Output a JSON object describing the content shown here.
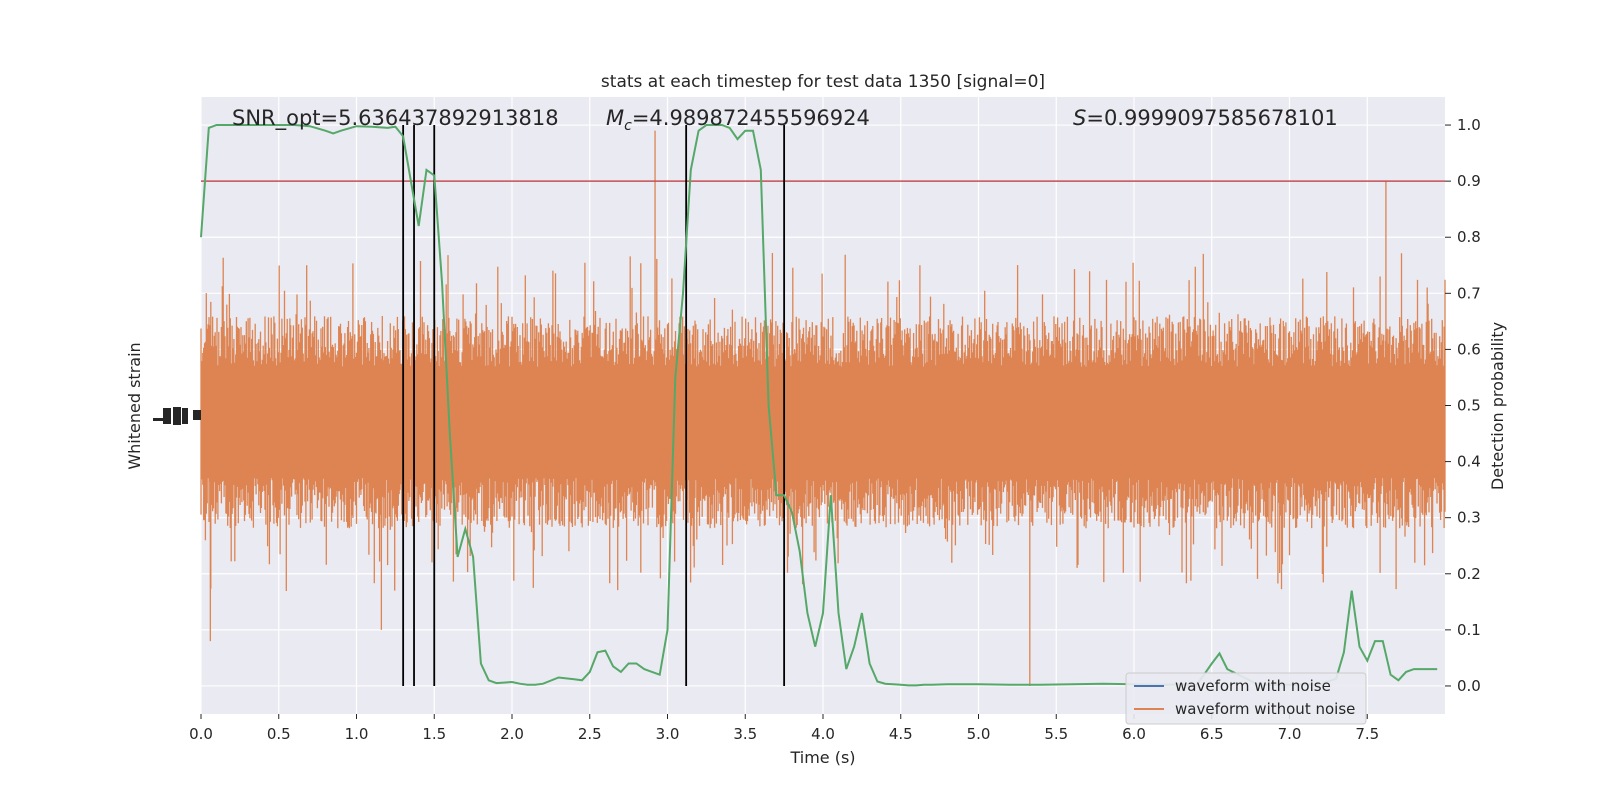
{
  "chart_data": {
    "type": "line",
    "title": "stats at each timestep for test data 1350 [signal=0]",
    "xlabel": "Time (s)",
    "ylabel_left": "Whitened strain",
    "ylabel_right": "Detection probability",
    "xlim": [
      0.0,
      8.0
    ],
    "ylim_right": [
      -0.05,
      1.05
    ],
    "x_ticks": [
      "0.0",
      "0.5",
      "1.0",
      "1.5",
      "2.0",
      "2.5",
      "3.0",
      "3.5",
      "4.0",
      "4.5",
      "5.0",
      "5.5",
      "6.0",
      "6.5",
      "7.0",
      "7.5"
    ],
    "y_ticks_right": [
      "0.0",
      "0.1",
      "0.2",
      "0.3",
      "0.4",
      "0.5",
      "0.6",
      "0.7",
      "0.8",
      "0.9",
      "1.0"
    ],
    "annotations": {
      "snr": "SNR_opt=5.636437892913818",
      "mc_symbol": "M",
      "mc_sub": "c",
      "mc_value": "=4.989872455596924",
      "s_symbol": "S",
      "s_value": "=0.9999097585678101"
    },
    "threshold": 0.9,
    "vertical_lines": [
      1.3,
      1.37,
      1.5,
      3.12,
      3.75
    ],
    "legend": {
      "position": "lower right",
      "entries": [
        {
          "label": "waveform with noise",
          "color": "#4c72b0"
        },
        {
          "label": "waveform without noise",
          "color": "#dd8452"
        }
      ]
    },
    "series": [
      {
        "name": "waveform with noise",
        "color": "#4c72b0",
        "note_values": "hidden beneath noise-free waveform"
      },
      {
        "name": "waveform without noise",
        "color": "#dd8452",
        "band_center": 0.47,
        "band_amplitude": 0.18
      },
      {
        "color": "#55a868",
        "x": [
          0.0,
          0.05,
          0.1,
          0.2,
          0.3,
          0.4,
          0.5,
          0.6,
          0.7,
          0.8,
          0.85,
          0.9,
          1.0,
          1.1,
          1.2,
          1.25,
          1.3,
          1.35,
          1.4,
          1.45,
          1.5,
          1.55,
          1.6,
          1.65,
          1.7,
          1.75,
          1.8,
          1.85,
          1.9,
          2.0,
          2.05,
          2.1,
          2.15,
          2.2,
          2.3,
          2.4,
          2.45,
          2.5,
          2.55,
          2.6,
          2.65,
          2.7,
          2.75,
          2.8,
          2.85,
          2.9,
          2.95,
          3.0,
          3.05,
          3.1,
          3.15,
          3.2,
          3.25,
          3.3,
          3.35,
          3.4,
          3.45,
          3.5,
          3.55,
          3.6,
          3.65,
          3.7,
          3.75,
          3.8,
          3.85,
          3.9,
          3.95,
          4.0,
          4.05,
          4.1,
          4.15,
          4.2,
          4.25,
          4.3,
          4.35,
          4.4,
          4.45,
          4.5,
          4.55,
          4.6,
          4.65,
          4.7,
          4.8,
          5.0,
          5.2,
          5.4,
          5.6,
          5.8,
          6.0,
          6.2,
          6.3,
          6.4,
          6.45,
          6.5,
          6.55,
          6.6,
          6.8,
          7.0,
          7.2,
          7.3,
          7.35,
          7.4,
          7.45,
          7.5,
          7.55,
          7.6,
          7.65,
          7.7,
          7.75,
          7.8,
          7.85,
          7.9,
          7.95
        ],
        "values": [
          0.8,
          0.995,
          1.0,
          1.0,
          1.0,
          1.0,
          1.0,
          1.0,
          0.998,
          0.99,
          0.985,
          0.99,
          0.998,
          0.997,
          0.995,
          0.997,
          0.98,
          0.9,
          0.82,
          0.92,
          0.91,
          0.72,
          0.45,
          0.23,
          0.28,
          0.23,
          0.04,
          0.01,
          0.005,
          0.007,
          0.004,
          0.002,
          0.002,
          0.004,
          0.015,
          0.012,
          0.01,
          0.025,
          0.06,
          0.063,
          0.035,
          0.025,
          0.04,
          0.04,
          0.03,
          0.025,
          0.02,
          0.1,
          0.55,
          0.7,
          0.92,
          0.99,
          1.0,
          1.0,
          1.0,
          0.995,
          0.975,
          0.99,
          0.99,
          0.92,
          0.5,
          0.34,
          0.34,
          0.31,
          0.24,
          0.13,
          0.07,
          0.13,
          0.34,
          0.13,
          0.03,
          0.07,
          0.13,
          0.04,
          0.008,
          0.004,
          0.003,
          0.002,
          0.001,
          0.001,
          0.002,
          0.002,
          0.003,
          0.003,
          0.002,
          0.002,
          0.003,
          0.004,
          0.003,
          0.002,
          0.003,
          0.001,
          0.02,
          0.04,
          0.058,
          0.03,
          0.002,
          0.002,
          0.003,
          0.013,
          0.06,
          0.17,
          0.07,
          0.045,
          0.08,
          0.08,
          0.02,
          0.01,
          0.025,
          0.03,
          0.03,
          0.03,
          0.03
        ]
      }
    ]
  }
}
